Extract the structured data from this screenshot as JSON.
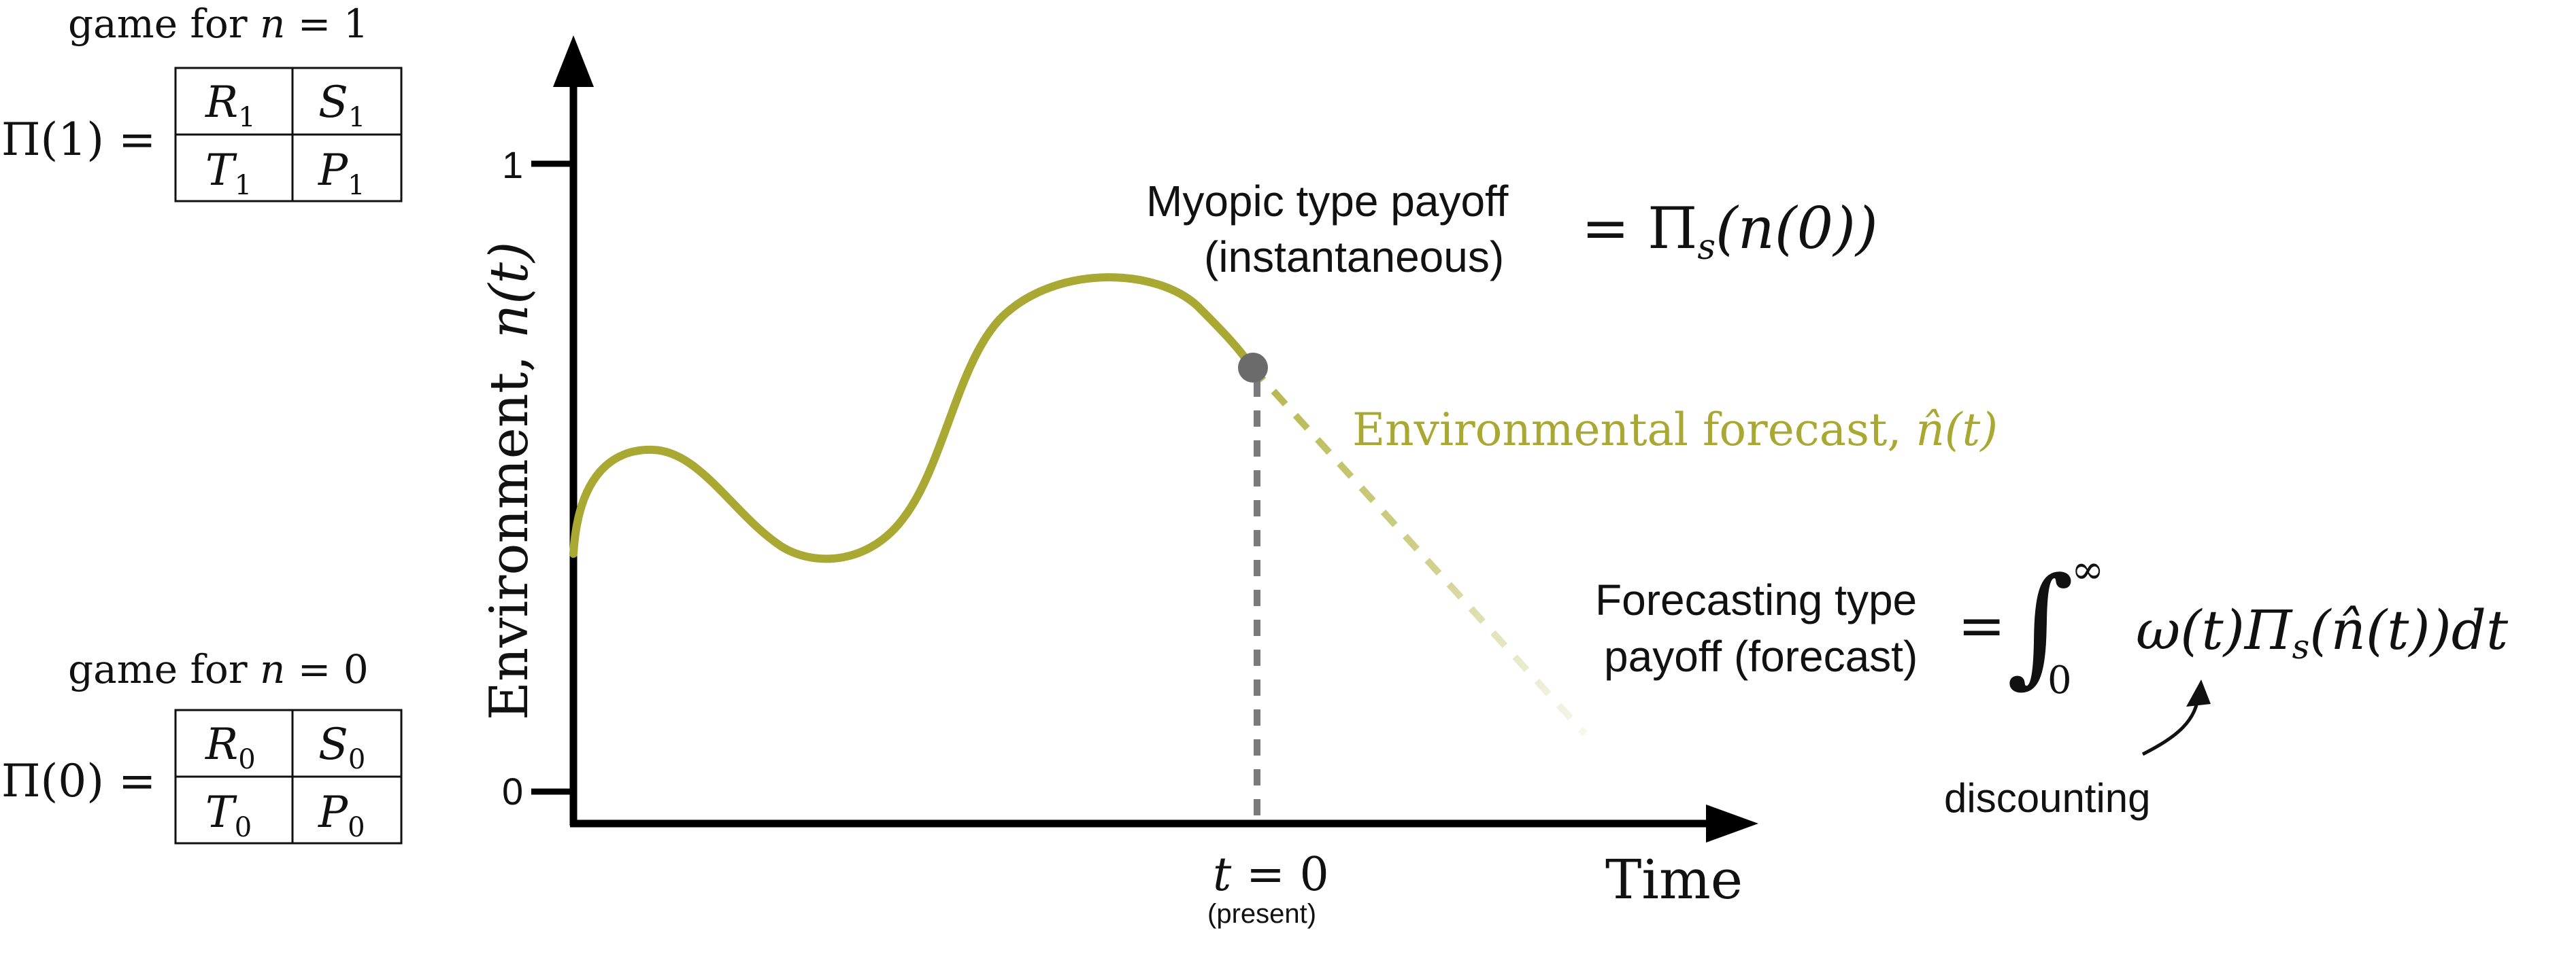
{
  "games": {
    "top": {
      "caption_prefix": "game for ",
      "caption_var": "n",
      "caption_eq": " = 1",
      "label_pi": "Π(1) =",
      "cells": [
        {
          "sym": "R",
          "sub": "1"
        },
        {
          "sym": "S",
          "sub": "1"
        },
        {
          "sym": "T",
          "sub": "1"
        },
        {
          "sym": "P",
          "sub": "1"
        }
      ]
    },
    "bottom": {
      "caption_prefix": "game for ",
      "caption_var": "n",
      "caption_eq": " = 0",
      "label_pi": "Π(0) =",
      "cells": [
        {
          "sym": "R",
          "sub": "0"
        },
        {
          "sym": "S",
          "sub": "0"
        },
        {
          "sym": "T",
          "sub": "0"
        },
        {
          "sym": "P",
          "sub": "0"
        }
      ]
    }
  },
  "axes": {
    "y_label_text": "Environment, ",
    "y_label_var": "n",
    "y_label_arg": "(t)",
    "y_tick_1": "1",
    "y_tick_0": "0",
    "x_label": "Time",
    "present_label_var": "t",
    "present_label_eq": " = 0",
    "present_sub": "(present)"
  },
  "myopic": {
    "line1": "Myopic type payoff",
    "line2": "(instantaneous)",
    "formula_eq": "= Π",
    "formula_sub": "s",
    "formula_arg": "(n(0))"
  },
  "forecast_curve": {
    "label_text": "Environmental forecast, ",
    "label_var": "n̂(t)"
  },
  "forecasting": {
    "line1": "Forecasting type",
    "line2": "payoff (forecast)",
    "formula_eq": "=",
    "integral": "∫",
    "upper": "∞",
    "lower": "0",
    "integrand": "ω(t)Π",
    "integrand_sub": "s",
    "integrand_arg": "(n̂(t))dt",
    "discount_label": "discounting"
  },
  "colors": {
    "curve": "#a8a832",
    "forecast_dash": "#b5b54a",
    "present_dot": "#6b6b6b",
    "present_line": "#7a7a7a",
    "axis": "#000000"
  }
}
